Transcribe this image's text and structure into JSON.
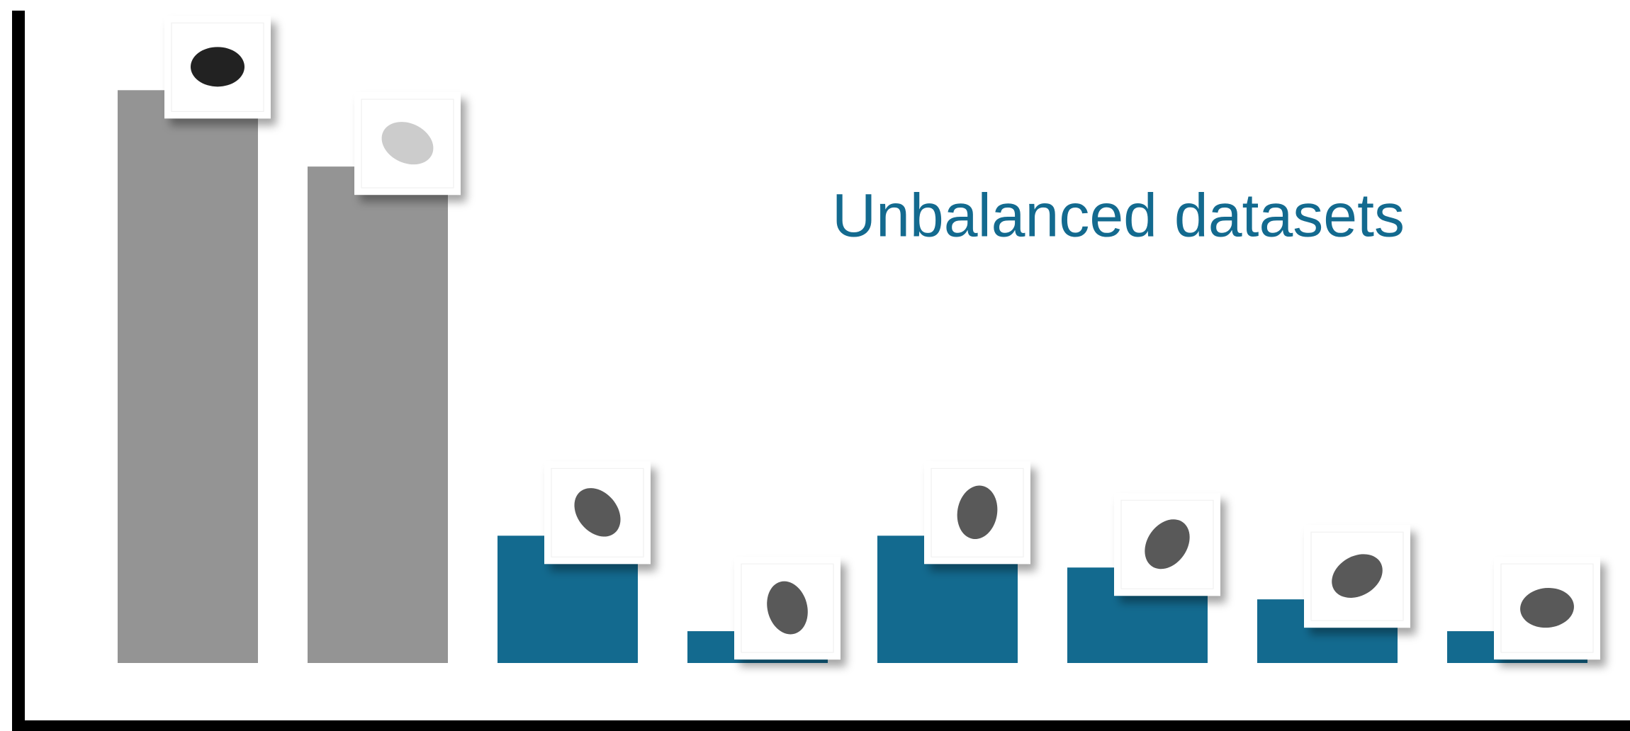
{
  "chart_data": {
    "type": "bar",
    "title": "Unbalanced datasets",
    "values": [
      18,
      15.6,
      4,
      1,
      4,
      3,
      2,
      1
    ],
    "colors": [
      "#949494",
      "#949494",
      "#136a8f",
      "#136a8f",
      "#136a8f",
      "#136a8f",
      "#136a8f",
      "#136a8f"
    ],
    "ylim": [
      0,
      20.5
    ]
  }
}
